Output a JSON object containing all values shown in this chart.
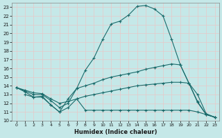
{
  "xlabel": "Humidex (Indice chaleur)",
  "xlim": [
    -0.5,
    23.5
  ],
  "ylim": [
    10,
    23.5
  ],
  "yticks": [
    10,
    11,
    12,
    13,
    14,
    15,
    16,
    17,
    18,
    19,
    20,
    21,
    22,
    23
  ],
  "xticks": [
    0,
    1,
    2,
    3,
    4,
    5,
    6,
    7,
    8,
    9,
    10,
    11,
    12,
    13,
    14,
    15,
    16,
    17,
    18,
    19,
    20,
    21,
    22,
    23
  ],
  "bg_color": "#c5e8e8",
  "grid_color": "#e8c8c8",
  "line_color": "#1a6b6b",
  "curves": [
    {
      "x": [
        0,
        1,
        2,
        3,
        4,
        5,
        6,
        7,
        8,
        9,
        10,
        11,
        12,
        13,
        14,
        15,
        16,
        17,
        18,
        19,
        20,
        21,
        22,
        23
      ],
      "y": [
        13.8,
        13.3,
        12.7,
        12.8,
        11.8,
        11.0,
        12.5,
        13.7,
        15.8,
        17.2,
        19.3,
        21.1,
        21.4,
        22.1,
        23.1,
        23.2,
        22.8,
        22.0,
        19.3,
        16.4,
        14.3,
        12.1,
        10.7,
        10.4
      ]
    },
    {
      "x": [
        0,
        1,
        2,
        3,
        4,
        5,
        6,
        7,
        8,
        9,
        10,
        11,
        12,
        13,
        14,
        15,
        16,
        17,
        18,
        19,
        20,
        21,
        22,
        23
      ],
      "y": [
        13.8,
        13.4,
        13.0,
        13.0,
        12.3,
        11.5,
        12.0,
        13.7,
        14.0,
        14.3,
        14.7,
        15.0,
        15.2,
        15.4,
        15.6,
        15.9,
        16.1,
        16.3,
        16.5,
        16.4,
        14.3,
        12.2,
        10.7,
        10.4
      ]
    },
    {
      "x": [
        0,
        1,
        2,
        3,
        4,
        5,
        6,
        7,
        8,
        9,
        10,
        11,
        12,
        13,
        14,
        15,
        16,
        17,
        18,
        19,
        20,
        21,
        22,
        23
      ],
      "y": [
        13.8,
        13.5,
        13.2,
        13.1,
        12.5,
        12.0,
        12.2,
        12.5,
        12.8,
        13.0,
        13.2,
        13.4,
        13.6,
        13.8,
        14.0,
        14.1,
        14.2,
        14.3,
        14.4,
        14.4,
        14.3,
        13.0,
        10.8,
        10.4
      ]
    },
    {
      "x": [
        1,
        2,
        3,
        4,
        5,
        6,
        7,
        8,
        9,
        10,
        11,
        12,
        13,
        14,
        15,
        16,
        17,
        18,
        19,
        20,
        21,
        22,
        23
      ],
      "y": [
        13.0,
        12.7,
        12.7,
        11.8,
        11.0,
        11.5,
        12.5,
        11.2,
        11.2,
        11.2,
        11.2,
        11.2,
        11.2,
        11.2,
        11.2,
        11.2,
        11.2,
        11.2,
        11.2,
        11.2,
        11.0,
        10.7,
        10.4
      ]
    }
  ]
}
